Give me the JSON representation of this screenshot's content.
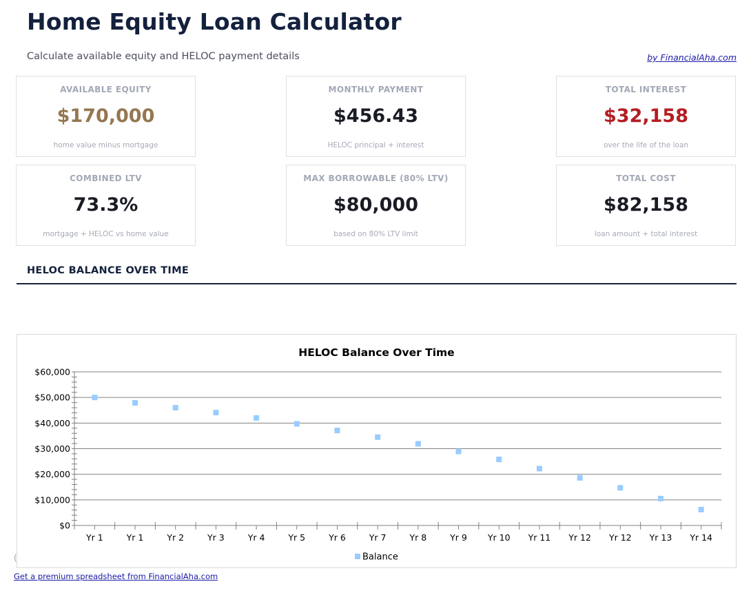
{
  "header": {
    "title": "Home Equity Loan Calculator",
    "subtitle": "Calculate available equity and HELOC payment details",
    "byline": "by FinancialAha.com"
  },
  "cards": [
    {
      "label": "AVAILABLE EQUITY",
      "value": "$170,000",
      "sub": "home value minus mortgage",
      "color": "#957750"
    },
    {
      "label": "MONTHLY PAYMENT",
      "value": "$456.43",
      "sub": "HELOC principal + interest",
      "color": "#1a1c24"
    },
    {
      "label": "TOTAL INTEREST",
      "value": "$32,158",
      "sub": "over the life of the loan",
      "color": "#b51d22"
    },
    {
      "label": "COMBINED LTV",
      "value": "73.3%",
      "sub": "mortgage + HELOC vs home value",
      "color": "#1a1c24"
    },
    {
      "label": "MAX BORROWABLE (80% LTV)",
      "value": "$80,000",
      "sub": "based on 80% LTV limit",
      "color": "#1a1c24"
    },
    {
      "label": "TOTAL COST",
      "value": "$82,158",
      "sub": "loan amount + total interest",
      "color": "#1a1c24"
    }
  ],
  "section": {
    "title": "HELOC BALANCE OVER TIME"
  },
  "hidden_note": "(",
  "chart_data": {
    "type": "scatter",
    "title": "HELOC Balance Over Time",
    "xlabel": "",
    "ylabel": "",
    "categories": [
      "Yr 1",
      "Yr 1",
      "Yr 2",
      "Yr 3",
      "Yr 4",
      "Yr 5",
      "Yr 6",
      "Yr 7",
      "Yr 8",
      "Yr 9",
      "Yr 10",
      "Yr 11",
      "Yr 12",
      "Yr 12",
      "Yr 13",
      "Yr 14"
    ],
    "series": [
      {
        "name": "Balance",
        "color": "#99ccff",
        "marker": "square",
        "values": [
          50000,
          47900,
          46000,
          44100,
          42000,
          39700,
          37100,
          34500,
          31900,
          28900,
          25800,
          22200,
          18600,
          14700,
          10500,
          6200
        ]
      }
    ],
    "ylim": [
      0,
      60000
    ],
    "yticks": [
      "$0",
      "$10,000",
      "$20,000",
      "$30,000",
      "$40,000",
      "$50,000",
      "$60,000"
    ],
    "grid": true,
    "legend_position": "bottom"
  },
  "footer": {
    "link": "Get a premium spreadsheet from FinancialAha.com"
  }
}
